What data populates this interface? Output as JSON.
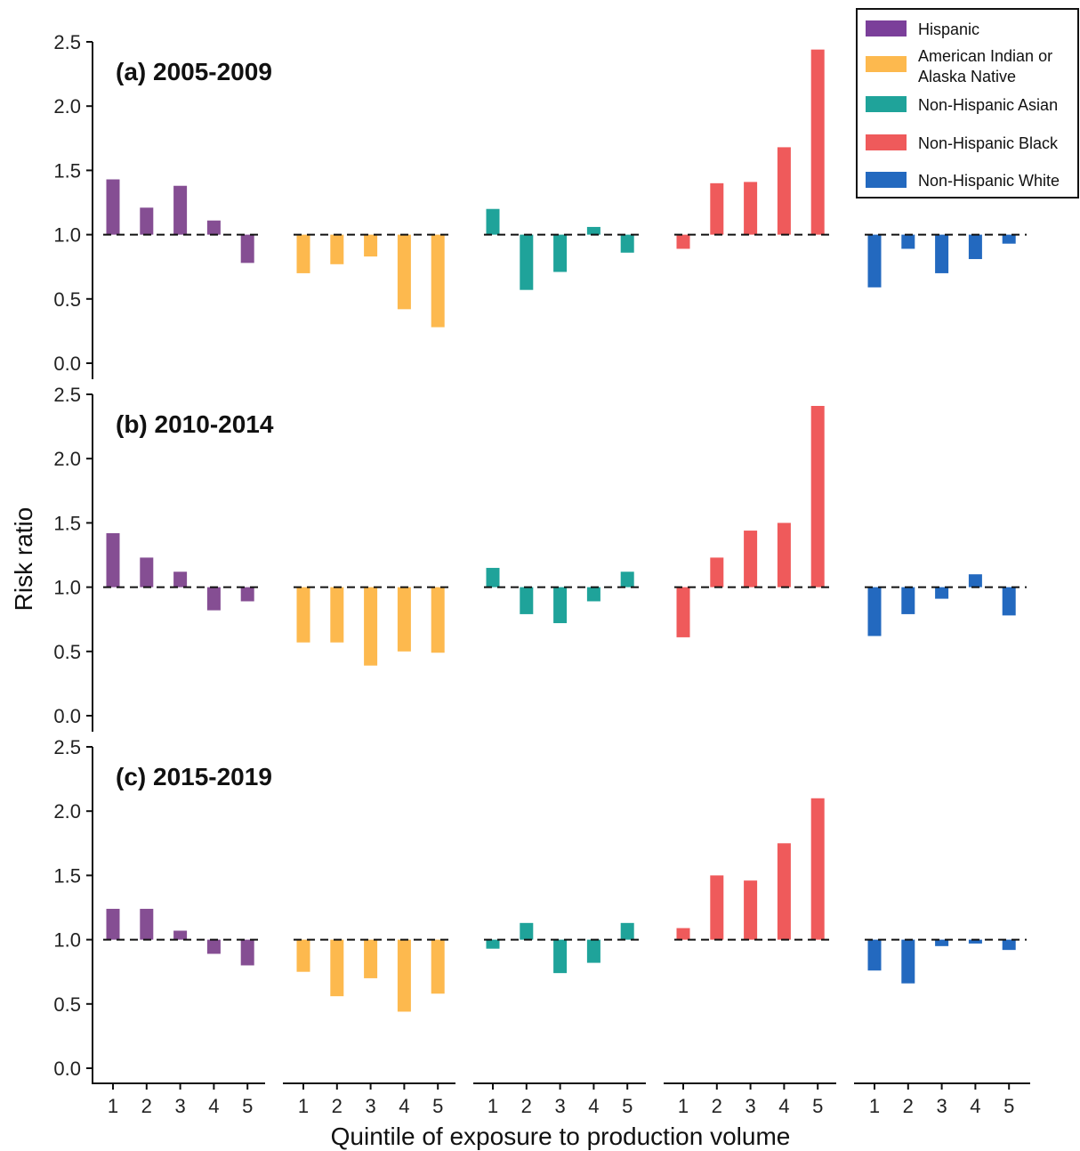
{
  "chart_data": {
    "type": "bar",
    "ylabel": "Risk ratio",
    "xlabel": "Quintile of exposure to production volume",
    "ylim": [
      0,
      2.5
    ],
    "yticks": [
      "0.0",
      "0.5",
      "1.0",
      "1.5",
      "2.0",
      "2.5"
    ],
    "baseline": 1.0,
    "categories": [
      "1",
      "2",
      "3",
      "4",
      "5"
    ],
    "legend": {
      "placement": "top-right",
      "entries": [
        {
          "label": "Hispanic",
          "color": "#7B3F9A"
        },
        {
          "label": "American Indian or",
          "label2": "Alaska Native",
          "color": "#FDB94E"
        },
        {
          "label": "Non-Hispanic Asian",
          "color": "#1FA39A"
        },
        {
          "label": "Non-Hispanic Black",
          "color": "#EF5A5B"
        },
        {
          "label": "Non-Hispanic White",
          "color": "#2369BF"
        }
      ]
    },
    "groups": [
      {
        "name": "Hispanic",
        "color": "#854E93"
      },
      {
        "name": "American Indian or Alaska Native",
        "color": "#FDB94E"
      },
      {
        "name": "Non-Hispanic Asian",
        "color": "#1FA39A"
      },
      {
        "name": "Non-Hispanic Black",
        "color": "#EF5A5B"
      },
      {
        "name": "Non-Hispanic White",
        "color": "#2369BF"
      }
    ],
    "panels": [
      {
        "title": "(a) 2005-2009",
        "values": [
          [
            1.43,
            1.21,
            1.38,
            1.11,
            0.78
          ],
          [
            0.7,
            0.77,
            0.83,
            0.42,
            0.28
          ],
          [
            1.2,
            0.57,
            0.71,
            1.06,
            0.86
          ],
          [
            0.89,
            1.4,
            1.41,
            1.68,
            2.44
          ],
          [
            0.59,
            0.89,
            0.7,
            0.81,
            0.93
          ]
        ]
      },
      {
        "title": "(b) 2010-2014",
        "values": [
          [
            1.42,
            1.23,
            1.12,
            0.82,
            0.89
          ],
          [
            0.57,
            0.57,
            0.39,
            0.5,
            0.49
          ],
          [
            1.15,
            0.79,
            0.72,
            0.89,
            1.12
          ],
          [
            0.61,
            1.23,
            1.44,
            1.5,
            2.41
          ],
          [
            0.62,
            0.79,
            0.91,
            1.1,
            0.78
          ]
        ]
      },
      {
        "title": "(c) 2015-2019",
        "values": [
          [
            1.24,
            1.24,
            1.07,
            0.89,
            0.8
          ],
          [
            0.75,
            0.56,
            0.7,
            0.44,
            0.58
          ],
          [
            0.93,
            1.13,
            0.74,
            0.82,
            1.13
          ],
          [
            1.09,
            1.5,
            1.46,
            1.75,
            2.1
          ],
          [
            0.76,
            0.66,
            0.95,
            0.97,
            0.92
          ]
        ]
      }
    ]
  }
}
